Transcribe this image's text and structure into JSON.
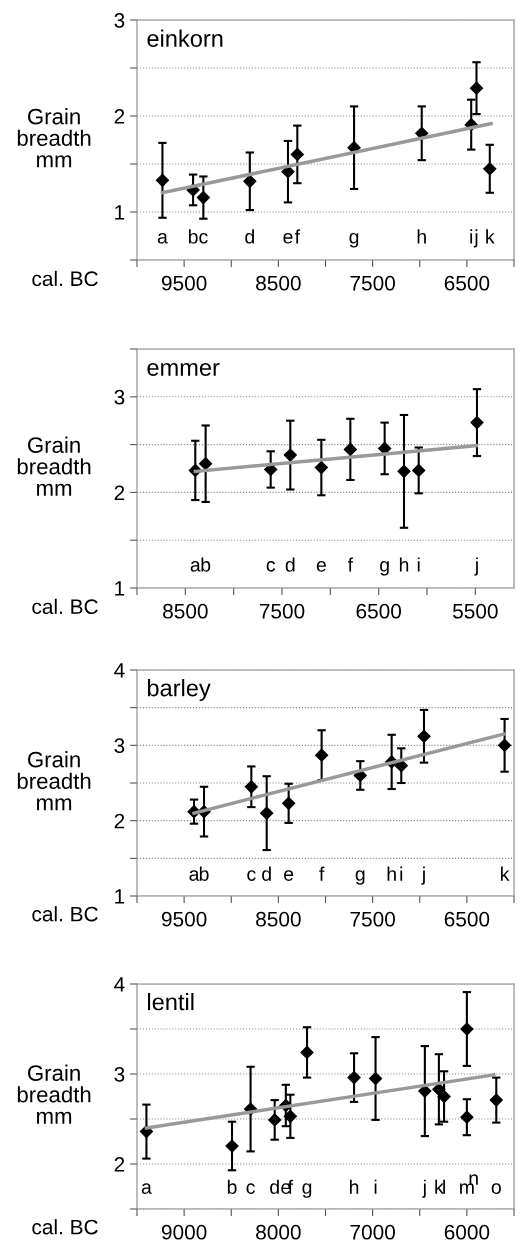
{
  "chart_data": [
    {
      "type": "scatter",
      "title": "einkorn",
      "xlabel": "cal. BC",
      "ylabel": "Grain\nbreadth\nmm",
      "grid": "y",
      "xlim": [
        10000,
        6000
      ],
      "xticks": [
        {
          "value": 10000,
          "label": null
        },
        9500,
        {
          "value": 9000,
          "label": null
        },
        8500,
        {
          "value": 8000,
          "label": null
        },
        7500,
        {
          "value": 7000,
          "label": null
        },
        6500,
        {
          "value": 6000,
          "label": null
        }
      ],
      "ylim": [
        0.5,
        3
      ],
      "yticks": [
        {
          "value": 0.5,
          "label": null
        },
        1,
        {
          "value": 1.5,
          "label": null
        },
        2,
        {
          "value": 2.5,
          "label": null
        },
        3
      ],
      "series": [
        {
          "marker": "diamond",
          "color": "#000000",
          "x": [
            9730,
            9405,
            9296,
            8803,
            8398,
            8299,
            7697,
            6979,
            6454,
            6398,
            6257
          ],
          "values": [
            1.33,
            1.23,
            1.15,
            1.32,
            1.42,
            1.6,
            1.67,
            1.82,
            1.91,
            2.29,
            1.45
          ],
          "errors": [
            0.39,
            0.16,
            0.22,
            0.3,
            0.32,
            0.3,
            0.43,
            0.28,
            0.26,
            0.27,
            0.25
          ]
        },
        {
          "type": "line",
          "color": "#999999",
          "x": [
            9730,
            6243
          ],
          "values": [
            1.2,
            1.92
          ]
        }
      ],
      "annotations": [
        "a",
        "b",
        "c",
        "d",
        "e",
        "f",
        "g",
        "h",
        "i",
        "j",
        "k"
      ]
    },
    {
      "type": "scatter",
      "title": "emmer",
      "xlabel": "cal. BC",
      "ylabel": "Grain\nbreadth\nmm",
      "grid": "y",
      "xlim": [
        9000,
        5100
      ],
      "xticks": [
        {
          "value": 9000,
          "label": null
        },
        8500,
        {
          "value": 8000,
          "label": null
        },
        7500,
        {
          "value": 7000,
          "label": null
        },
        6500,
        {
          "value": 6000,
          "label": null
        },
        5500
      ],
      "ylim": [
        1,
        3.5
      ],
      "yticks": [
        1,
        {
          "value": 1.5,
          "label": null
        },
        2,
        {
          "value": 2.5,
          "label": null
        },
        3,
        {
          "value": 3.5,
          "label": null
        }
      ],
      "series": [
        {
          "marker": "diamond",
          "color": "#000000",
          "x": [
            8397,
            8290,
            7617,
            7414,
            7093,
            6793,
            6438,
            6238,
            6086,
            5483
          ],
          "values": [
            2.23,
            2.3,
            2.24,
            2.39,
            2.26,
            2.45,
            2.46,
            2.22,
            2.23,
            2.73
          ],
          "errors": [
            0.31,
            0.4,
            0.19,
            0.36,
            0.29,
            0.32,
            0.27,
            0.59,
            0.24,
            0.35
          ]
        },
        {
          "type": "line",
          "color": "#999999",
          "x": [
            8397,
            5490
          ],
          "values": [
            2.22,
            2.49
          ]
        }
      ],
      "annotations": [
        "a",
        "b",
        "c",
        "d",
        "e",
        "f",
        "g",
        "h",
        "i",
        "j"
      ]
    },
    {
      "type": "scatter",
      "title": "barley",
      "xlabel": "cal. BC",
      "ylabel": "Grain\nbreadth\nmm",
      "grid": "y",
      "xlim": [
        10000,
        6000
      ],
      "xticks": [
        {
          "value": 10000,
          "label": null
        },
        9500,
        {
          "value": 9000,
          "label": null
        },
        8500,
        {
          "value": 8000,
          "label": null
        },
        7500,
        {
          "value": 7000,
          "label": null
        },
        6500,
        {
          "value": 6000,
          "label": null
        }
      ],
      "ylim": [
        1,
        4
      ],
      "yticks": [
        1,
        {
          "value": 1.5,
          "label": null
        },
        2,
        {
          "value": 2.5,
          "label": null
        },
        3,
        {
          "value": 3.5,
          "label": null
        },
        4
      ],
      "series": [
        {
          "marker": "diamond",
          "color": "#000000",
          "x": [
            9395,
            9289,
            8787,
            8624,
            8391,
            8041,
            7631,
            7298,
            7196,
            6955,
            6100
          ],
          "values": [
            2.12,
            2.12,
            2.45,
            2.1,
            2.23,
            2.87,
            2.6,
            2.78,
            2.73,
            3.12,
            3.0
          ],
          "errors": [
            0.16,
            0.33,
            0.27,
            0.49,
            0.26,
            0.33,
            0.19,
            0.36,
            0.23,
            0.35,
            0.35
          ]
        },
        {
          "type": "line",
          "color": "#999999",
          "x": [
            9395,
            6107
          ],
          "values": [
            2.1,
            3.15
          ]
        }
      ],
      "annotations": [
        "a",
        "b",
        "c",
        "d",
        "e",
        "f",
        "g",
        "h",
        "i",
        "j",
        "k"
      ]
    },
    {
      "type": "scatter",
      "title": "lentil",
      "xlabel": "cal. BC",
      "ylabel": "Grain\nbreadth\nmm",
      "grid": "y",
      "xlim": [
        9500,
        5500
      ],
      "xticks": [
        {
          "value": 9500,
          "label": null
        },
        9000,
        {
          "value": 8500,
          "label": null
        },
        8000,
        {
          "value": 7500,
          "label": null
        },
        7000,
        {
          "value": 6500,
          "label": null
        },
        6000,
        {
          "value": 5500,
          "label": null
        }
      ],
      "ylim": [
        1.5,
        4
      ],
      "yticks": [
        {
          "value": 1.5,
          "label": null
        },
        2,
        {
          "value": 2.5,
          "label": null
        },
        3,
        {
          "value": 3.5,
          "label": null
        },
        4
      ],
      "series": [
        {
          "marker": "diamond",
          "color": "#000000",
          "x": [
            9400,
            8492,
            8295,
            8039,
            7921,
            7873,
            7696,
            7197,
            6969,
            6446,
            6297,
            6242,
            6000,
            6000,
            5688
          ],
          "values": [
            2.36,
            2.2,
            2.61,
            2.49,
            2.65,
            2.53,
            3.24,
            2.96,
            2.95,
            2.81,
            2.83,
            2.75,
            2.52,
            3.5,
            2.71
          ],
          "errors": [
            0.3,
            0.27,
            0.47,
            0.22,
            0.23,
            0.24,
            0.28,
            0.27,
            0.46,
            0.5,
            0.39,
            0.28,
            0.2,
            0.41,
            0.25
          ]
        },
        {
          "type": "line",
          "color": "#999999",
          "x": [
            9400,
            5715
          ],
          "values": [
            2.4,
            2.99
          ]
        }
      ],
      "annotations": [
        "a",
        "b",
        "c",
        "d",
        "e",
        "f",
        "g",
        "h",
        "i",
        "j",
        "k",
        "l",
        "m",
        "n",
        "o"
      ]
    }
  ]
}
